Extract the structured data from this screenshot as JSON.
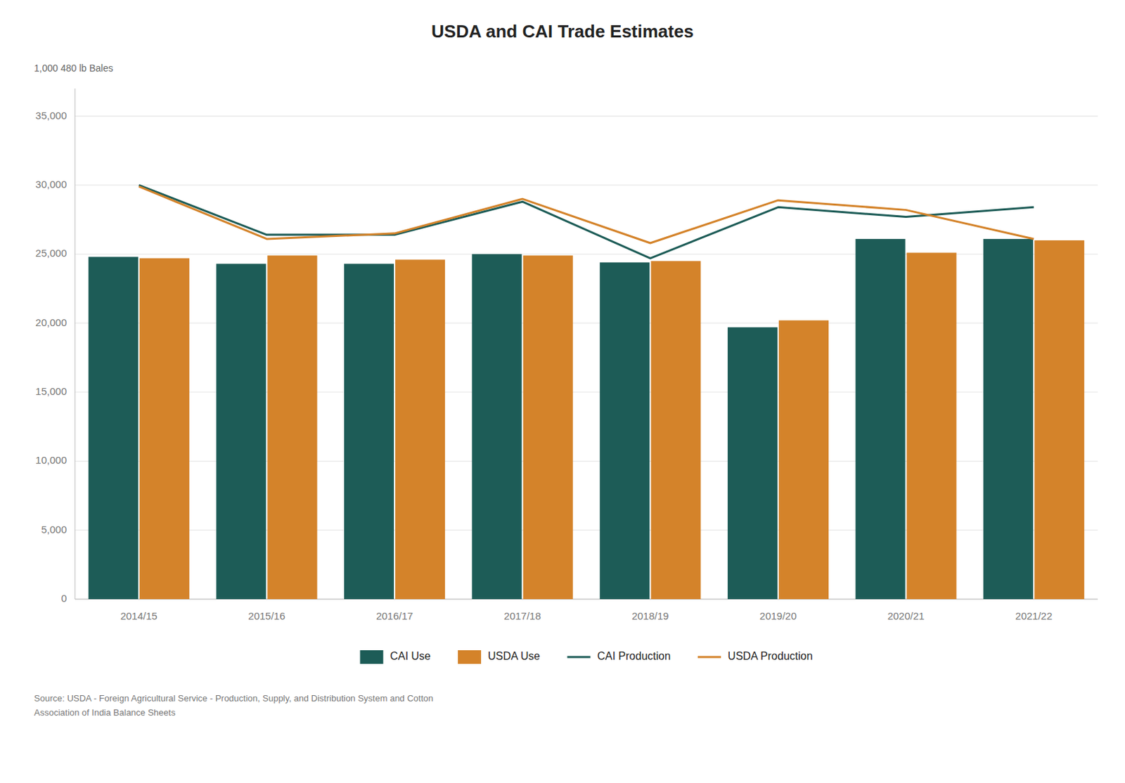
{
  "chart_data": {
    "type": "bar",
    "title": "USDA and CAI Trade Estimates",
    "ylabel": "1,000 480 lb Bales",
    "categories": [
      "2014/15",
      "2015/16",
      "2016/17",
      "2017/18",
      "2018/19",
      "2019/20",
      "2020/21",
      "2021/22"
    ],
    "series": [
      {
        "name": "CAI Use",
        "type": "bar",
        "color": "#1d5c57",
        "values": [
          24800,
          24300,
          24300,
          25000,
          24400,
          19700,
          26100,
          26100
        ]
      },
      {
        "name": "USDA Use",
        "type": "bar",
        "color": "#d4832a",
        "values": [
          24700,
          24900,
          24600,
          24900,
          24500,
          20200,
          25100,
          26000
        ]
      },
      {
        "name": "CAI Production",
        "type": "line",
        "color": "#1d5c57",
        "values": [
          30000,
          26400,
          26400,
          28800,
          24700,
          28400,
          27700,
          28400
        ]
      },
      {
        "name": "USDA Production",
        "type": "line",
        "color": "#d4832a",
        "values": [
          29900,
          26100,
          26500,
          29000,
          25800,
          28900,
          28200,
          26100
        ]
      }
    ],
    "ylim": [
      0,
      37000
    ],
    "yticks": [
      0,
      {
        "value": 5000,
        "label": "5,000"
      },
      {
        "value": 10000,
        "label": "10,000"
      },
      {
        "value": 15000,
        "label": "15,000"
      },
      {
        "value": 20000,
        "label": "20,000"
      },
      {
        "value": 25000,
        "label": "25,000"
      },
      {
        "value": 30000,
        "label": "30,000"
      },
      {
        "value": 35000,
        "label": "35,000"
      }
    ],
    "grid": true,
    "legend": "bottom",
    "annotations": [
      "Source: USDA - Foreign Agricultural Service - Production, Supply, and Distribution System and Cotton\nAssociation of India Balance Sheets"
    ]
  }
}
